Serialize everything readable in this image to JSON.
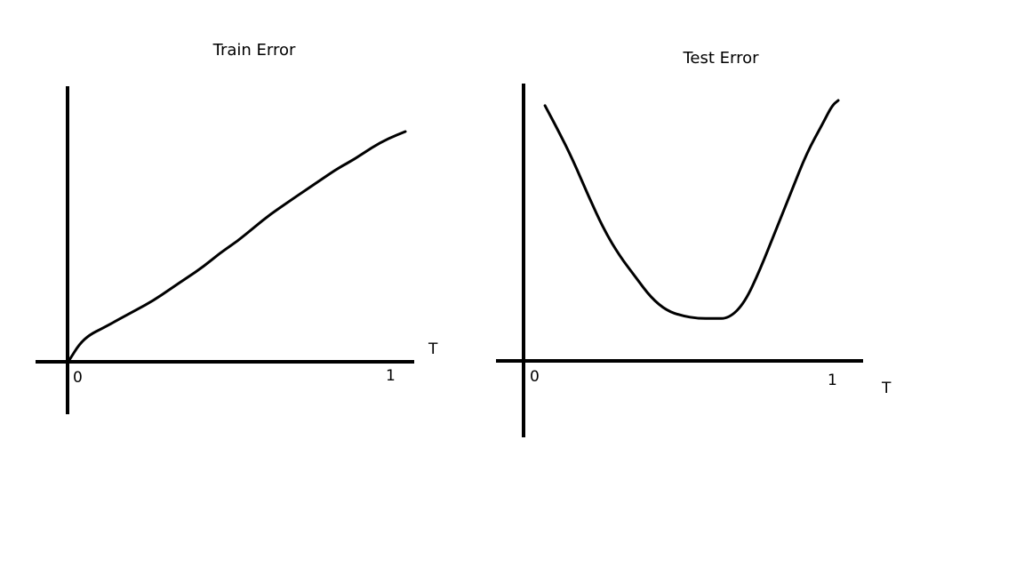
{
  "chart_data": [
    {
      "type": "line",
      "title": "Train Error",
      "xlabel": "T",
      "ylabel": "",
      "x_tick_labels": [
        "0",
        "1"
      ],
      "xlim": [
        0,
        1
      ],
      "grid": false,
      "series": [
        {
          "x": [
            0,
            0.03,
            0.06,
            0.1,
            0.15,
            0.2,
            0.25,
            0.3,
            0.35,
            0.4,
            0.45,
            0.5,
            0.55,
            0.6,
            0.65,
            0.7,
            0.75,
            0.8,
            0.85,
            0.9,
            0.95,
            1.0
          ],
          "y": [
            0,
            0.07,
            0.11,
            0.14,
            0.18,
            0.22,
            0.26,
            0.31,
            0.36,
            0.41,
            0.47,
            0.52,
            0.58,
            0.64,
            0.69,
            0.74,
            0.79,
            0.84,
            0.88,
            0.93,
            0.97,
            1.0
          ]
        }
      ]
    },
    {
      "type": "line",
      "title": "Test Error",
      "xlabel": "T",
      "ylabel": "",
      "x_tick_labels": [
        "0",
        "1"
      ],
      "xlim": [
        0,
        1
      ],
      "grid": false,
      "series": [
        {
          "x": [
            0.06,
            0.1,
            0.15,
            0.2,
            0.25,
            0.3,
            0.35,
            0.4,
            0.45,
            0.5,
            0.55,
            0.6,
            0.65,
            0.7,
            0.75,
            0.8,
            0.85,
            0.9,
            0.95,
            0.98,
            1.0
          ],
          "y": [
            0.98,
            0.89,
            0.77,
            0.63,
            0.5,
            0.4,
            0.32,
            0.24,
            0.19,
            0.17,
            0.16,
            0.16,
            0.16,
            0.22,
            0.35,
            0.5,
            0.65,
            0.8,
            0.91,
            0.98,
            1.0
          ]
        }
      ]
    }
  ]
}
